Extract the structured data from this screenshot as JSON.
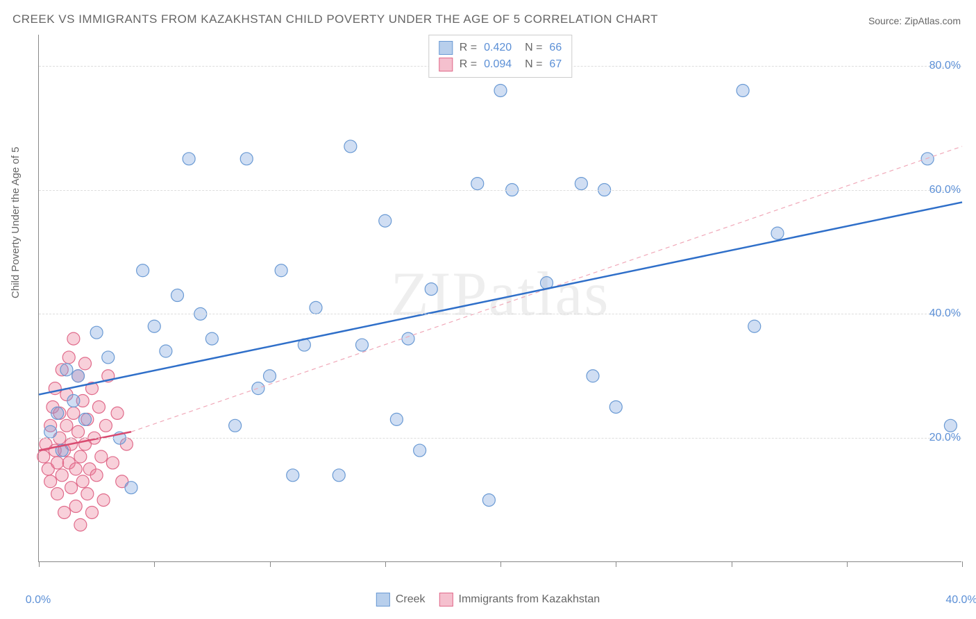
{
  "title": "CREEK VS IMMIGRANTS FROM KAZAKHSTAN CHILD POVERTY UNDER THE AGE OF 5 CORRELATION CHART",
  "source": "Source: ZipAtlas.com",
  "ylabel": "Child Poverty Under the Age of 5",
  "watermark": "ZIPatlas",
  "chart": {
    "type": "scatter",
    "xlim": [
      0,
      40
    ],
    "ylim": [
      0,
      85
    ],
    "x_ticks": [
      0,
      5,
      10,
      15,
      20,
      25,
      30,
      35,
      40
    ],
    "x_tick_labels": {
      "0": "0.0%",
      "40": "40.0%"
    },
    "y_gridlines": [
      20,
      40,
      60,
      80
    ],
    "y_tick_labels": {
      "20": "20.0%",
      "40": "40.0%",
      "60": "60.0%",
      "80": "80.0%"
    },
    "background_color": "#ffffff",
    "grid_color": "#dddddd",
    "axis_color": "#888888",
    "marker_radius": 9,
    "marker_stroke_width": 1.2,
    "series": [
      {
        "name": "Creek",
        "color_fill": "rgba(120,160,220,0.35)",
        "color_stroke": "#6a9ad4",
        "swatch_fill": "#b8cfec",
        "swatch_border": "#6a9ad4",
        "r_value": "0.420",
        "n_value": "66",
        "trend": {
          "x1": 0,
          "y1": 27,
          "x2": 40,
          "y2": 58,
          "stroke": "#2f6fc9",
          "width": 2.5,
          "dash": "none"
        },
        "points": [
          [
            0.5,
            21
          ],
          [
            0.8,
            24
          ],
          [
            1.0,
            18
          ],
          [
            1.2,
            31
          ],
          [
            1.5,
            26
          ],
          [
            1.7,
            30
          ],
          [
            2.0,
            23
          ],
          [
            2.5,
            37
          ],
          [
            3.0,
            33
          ],
          [
            3.5,
            20
          ],
          [
            4.0,
            12
          ],
          [
            4.5,
            47
          ],
          [
            5.0,
            38
          ],
          [
            5.5,
            34
          ],
          [
            6.0,
            43
          ],
          [
            6.5,
            65
          ],
          [
            7.0,
            40
          ],
          [
            7.5,
            36
          ],
          [
            8.5,
            22
          ],
          [
            9.0,
            65
          ],
          [
            9.5,
            28
          ],
          [
            10.0,
            30
          ],
          [
            10.5,
            47
          ],
          [
            11.0,
            14
          ],
          [
            11.5,
            35
          ],
          [
            12.0,
            41
          ],
          [
            13.0,
            14
          ],
          [
            13.5,
            67
          ],
          [
            14.0,
            35
          ],
          [
            15.0,
            55
          ],
          [
            15.5,
            23
          ],
          [
            16.0,
            36
          ],
          [
            16.5,
            18
          ],
          [
            17.0,
            44
          ],
          [
            19.0,
            61
          ],
          [
            19.5,
            10
          ],
          [
            20.0,
            76
          ],
          [
            20.5,
            60
          ],
          [
            22.0,
            45
          ],
          [
            23.5,
            61
          ],
          [
            24.0,
            30
          ],
          [
            24.5,
            60
          ],
          [
            25.0,
            25
          ],
          [
            30.5,
            76
          ],
          [
            31.0,
            38
          ],
          [
            32.0,
            53
          ],
          [
            38.5,
            65
          ],
          [
            39.5,
            22
          ]
        ]
      },
      {
        "name": "Immigrants from Kazakhstan",
        "color_fill": "rgba(235,120,150,0.35)",
        "color_stroke": "#e06a8a",
        "swatch_fill": "#f5c0ce",
        "swatch_border": "#e06a8a",
        "r_value": "0.094",
        "n_value": "67",
        "trend_solid": {
          "x1": 0,
          "y1": 18,
          "x2": 4,
          "y2": 21,
          "stroke": "#d94a70",
          "width": 2.5,
          "dash": "none"
        },
        "trend_dash": {
          "x1": 4,
          "y1": 21,
          "x2": 40,
          "y2": 67,
          "stroke": "#f0a8b8",
          "width": 1.2,
          "dash": "6,5"
        },
        "points": [
          [
            0.2,
            17
          ],
          [
            0.3,
            19
          ],
          [
            0.4,
            15
          ],
          [
            0.5,
            22
          ],
          [
            0.5,
            13
          ],
          [
            0.6,
            25
          ],
          [
            0.7,
            18
          ],
          [
            0.7,
            28
          ],
          [
            0.8,
            16
          ],
          [
            0.8,
            11
          ],
          [
            0.9,
            20
          ],
          [
            0.9,
            24
          ],
          [
            1.0,
            14
          ],
          [
            1.0,
            31
          ],
          [
            1.1,
            18
          ],
          [
            1.1,
            8
          ],
          [
            1.2,
            27
          ],
          [
            1.2,
            22
          ],
          [
            1.3,
            16
          ],
          [
            1.3,
            33
          ],
          [
            1.4,
            19
          ],
          [
            1.4,
            12
          ],
          [
            1.5,
            36
          ],
          [
            1.5,
            24
          ],
          [
            1.6,
            15
          ],
          [
            1.6,
            9
          ],
          [
            1.7,
            21
          ],
          [
            1.7,
            30
          ],
          [
            1.8,
            17
          ],
          [
            1.8,
            6
          ],
          [
            1.9,
            26
          ],
          [
            1.9,
            13
          ],
          [
            2.0,
            32
          ],
          [
            2.0,
            19
          ],
          [
            2.1,
            11
          ],
          [
            2.1,
            23
          ],
          [
            2.2,
            15
          ],
          [
            2.3,
            28
          ],
          [
            2.3,
            8
          ],
          [
            2.4,
            20
          ],
          [
            2.5,
            14
          ],
          [
            2.6,
            25
          ],
          [
            2.7,
            17
          ],
          [
            2.8,
            10
          ],
          [
            2.9,
            22
          ],
          [
            3.0,
            30
          ],
          [
            3.2,
            16
          ],
          [
            3.4,
            24
          ],
          [
            3.6,
            13
          ],
          [
            3.8,
            19
          ]
        ]
      }
    ]
  },
  "legend_bottom": [
    {
      "label": "Creek",
      "fill": "#b8cfec",
      "border": "#6a9ad4"
    },
    {
      "label": "Immigrants from Kazakhstan",
      "fill": "#f5c0ce",
      "border": "#e06a8a"
    }
  ]
}
